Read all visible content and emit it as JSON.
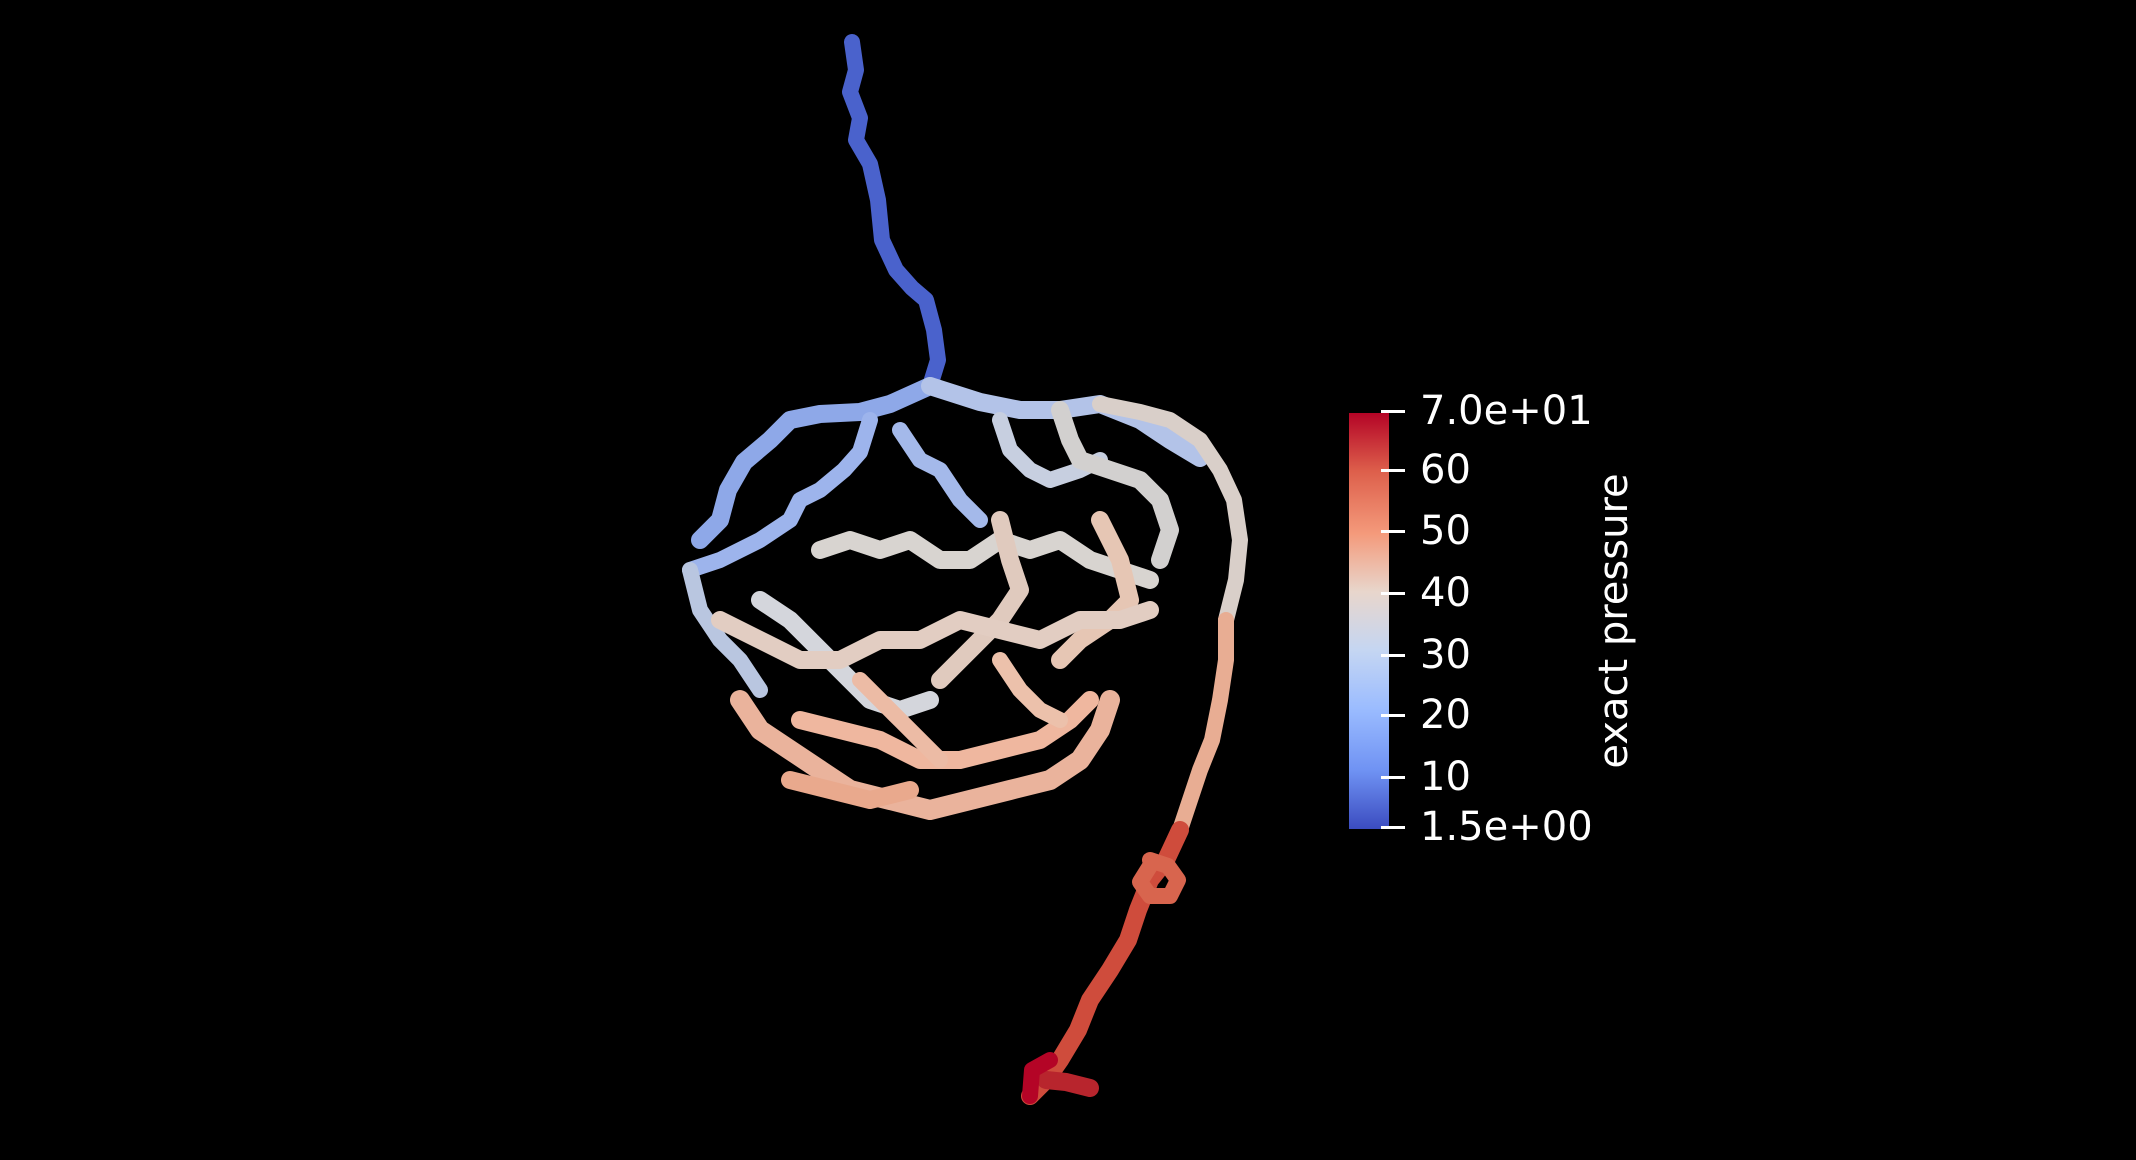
{
  "colorbar": {
    "title": "exact pressure",
    "range": [
      1.5,
      70
    ],
    "colormap": [
      "#3b4cc0",
      "#6f92f3",
      "#9bbcff",
      "#c5d6f2",
      "#e8d6cc",
      "#f49a7b",
      "#dd5f4b",
      "#b40426"
    ],
    "ticks": [
      {
        "label": "7.0e+01",
        "value": 70
      },
      {
        "label": "60",
        "value": 60
      },
      {
        "label": "50",
        "value": 50
      },
      {
        "label": "40",
        "value": 40
      },
      {
        "label": "30",
        "value": 30
      },
      {
        "label": "20",
        "value": 20
      },
      {
        "label": "10",
        "value": 10
      },
      {
        "label": "1.5e+00",
        "value": 1.5
      }
    ]
  },
  "scene": {
    "background": "#000000",
    "object": "vessel-network",
    "inlet_color": "#3b4cc0",
    "outlet_color": "#b40426"
  }
}
